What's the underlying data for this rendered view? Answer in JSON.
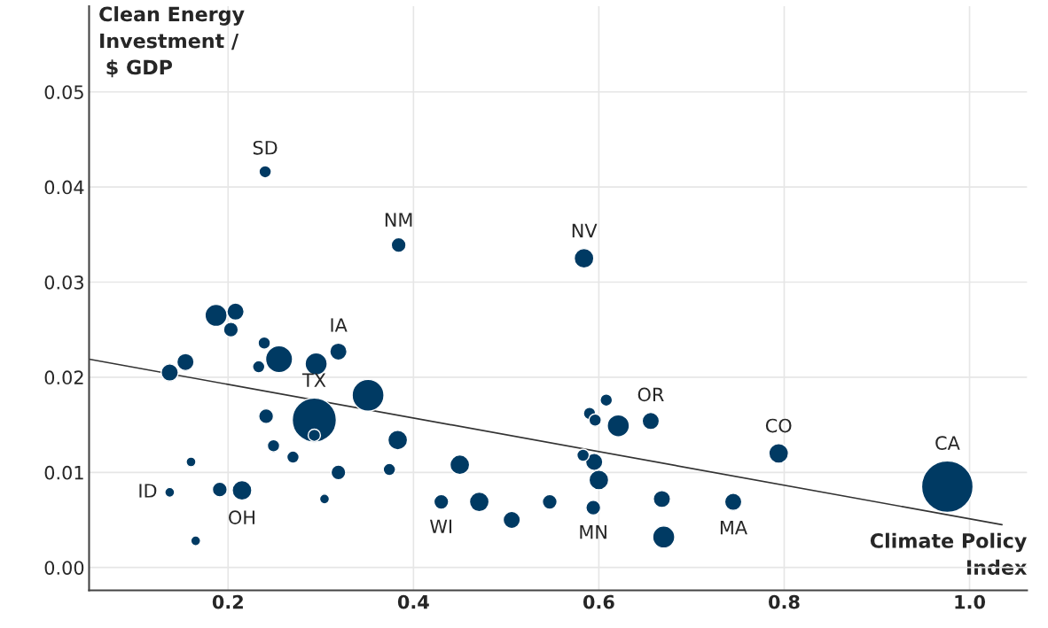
{
  "chart_data": {
    "type": "bubble",
    "xlabel": "Climate Policy\nIndex",
    "ylabel": "Clean Energy\nInvestment /\n $ GDP",
    "xlim": [
      0.05,
      1.062
    ],
    "ylim": [
      -0.0024,
      0.059
    ],
    "xticks": [
      0.2,
      0.4,
      0.6,
      0.8,
      {
        "value": 1.0,
        "label": "1.0"
      }
    ],
    "yticks": [
      {
        "value": 0,
        "label": "0.00"
      },
      {
        "value": 0.01,
        "label": "0.01"
      },
      {
        "value": 0.02,
        "label": "0.02"
      },
      {
        "value": 0.03,
        "label": "0.03"
      },
      {
        "value": 0.04,
        "label": "0.04"
      },
      {
        "value": 0.05,
        "label": "0.05"
      }
    ],
    "grid": true,
    "legend": false,
    "series": [
      {
        "color": "#003a63",
        "x": [
          0.24,
          0.384,
          0.187,
          0.208,
          0.203,
          0.239,
          0.255,
          0.233,
          0.295,
          0.319,
          0.154,
          0.137,
          0.351,
          0.293,
          0.293,
          0.241,
          0.383,
          0.249,
          0.27,
          0.16,
          0.319,
          0.374,
          0.137,
          0.191,
          0.215,
          0.304,
          0.165,
          0.584,
          0.45,
          0.43,
          0.471,
          0.506,
          0.547,
          0.608,
          0.59,
          0.596,
          0.621,
          0.656,
          0.583,
          0.595,
          0.6,
          0.594,
          0.668,
          0.67,
          0.794,
          0.745,
          0.976
        ],
        "values": [
          0.0416,
          0.0339,
          0.0265,
          0.0269,
          0.025,
          0.0236,
          0.0219,
          0.0211,
          0.0214,
          0.0227,
          0.0216,
          0.0205,
          0.0181,
          0.0155,
          0.0139,
          0.0159,
          0.0134,
          0.0128,
          0.0116,
          0.0111,
          0.01,
          0.0103,
          0.0079,
          0.0082,
          0.0081,
          0.0072,
          0.0028,
          0.0325,
          0.0108,
          0.0069,
          0.0069,
          0.005,
          0.0069,
          0.0176,
          0.0162,
          0.0155,
          0.0149,
          0.0154,
          0.0118,
          0.0111,
          0.0092,
          0.0063,
          0.0072,
          0.0032,
          0.012,
          0.0069,
          0.0085
        ],
        "sizes": [
          0.057,
          0.082,
          0.184,
          0.111,
          0.082,
          0.057,
          0.274,
          0.057,
          0.184,
          0.111,
          0.111,
          0.111,
          0.383,
          0.735,
          0.057,
          0.082,
          0.145,
          0.057,
          0.057,
          0.036,
          0.082,
          0.057,
          0.036,
          0.082,
          0.145,
          0.036,
          0.036,
          0.145,
          0.145,
          0.082,
          0.145,
          0.111,
          0.082,
          0.057,
          0.057,
          0.057,
          0.184,
          0.111,
          0.057,
          0.111,
          0.145,
          0.082,
          0.111,
          0.184,
          0.145,
          0.111,
          1
        ]
      },
      {
        "type": "line",
        "color": "#333333",
        "x": [
          0.05,
          1.035
        ],
        "values": [
          0.0219,
          0.0045
        ]
      }
    ],
    "annotations": [
      {
        "text": "SD",
        "x": 0.24,
        "y": 0.0416
      },
      {
        "text": "NM",
        "x": 0.384,
        "y": 0.0339
      },
      {
        "text": "NV",
        "x": 0.584,
        "y": 0.0325
      },
      {
        "text": "IA",
        "x": 0.319,
        "y": 0.0227
      },
      {
        "text": "TX",
        "x": 0.293,
        "y": 0.0155
      },
      {
        "text": "OR",
        "x": 0.656,
        "y": 0.0154
      },
      {
        "text": "CO",
        "x": 0.794,
        "y": 0.012
      },
      {
        "text": "CA",
        "x": 0.976,
        "y": 0.0085
      },
      {
        "text": "ID",
        "x": 0.137,
        "y": 0.0079
      },
      {
        "text": "OH",
        "x": 0.215,
        "y": 0.0081
      },
      {
        "text": "WI",
        "x": 0.43,
        "y": 0.0069
      },
      {
        "text": "MN",
        "x": 0.594,
        "y": 0.0063
      },
      {
        "text": "MA",
        "x": 0.745,
        "y": 0.0069
      }
    ]
  }
}
